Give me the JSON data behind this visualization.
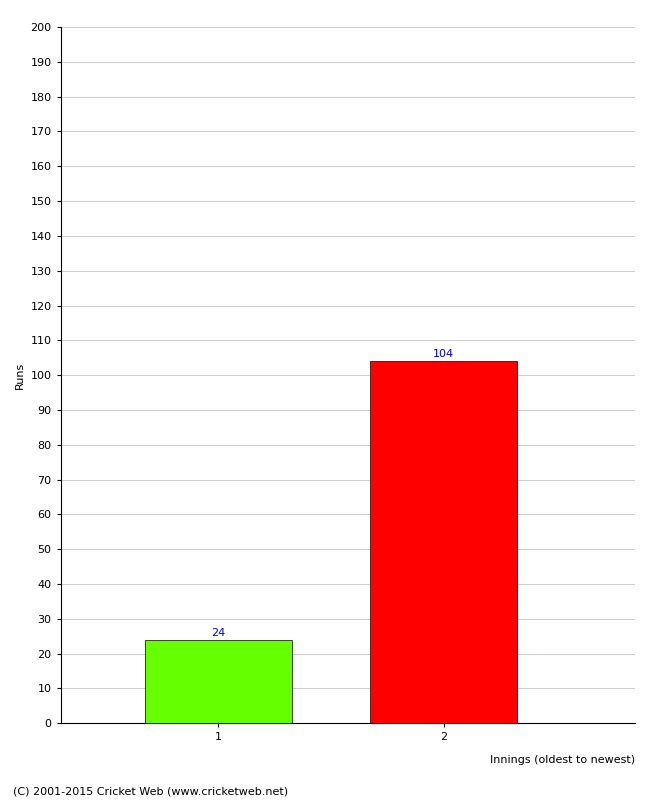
{
  "categories": [
    "1",
    "2"
  ],
  "values": [
    24,
    104
  ],
  "bar_colors": [
    "#66ff00",
    "#ff0000"
  ],
  "xlabel": "Innings (oldest to newest)",
  "ylabel": "Runs",
  "ylim": [
    0,
    200
  ],
  "ytick_step": 10,
  "value_label_color": "#0000cc",
  "value_label_fontsize": 8,
  "axis_label_fontsize": 8,
  "tick_fontsize": 8,
  "footer_text": "(C) 2001-2015 Cricket Web (www.cricketweb.net)",
  "footer_fontsize": 8,
  "background_color": "#ffffff",
  "grid_color": "#cccccc",
  "border_color": "#000000"
}
